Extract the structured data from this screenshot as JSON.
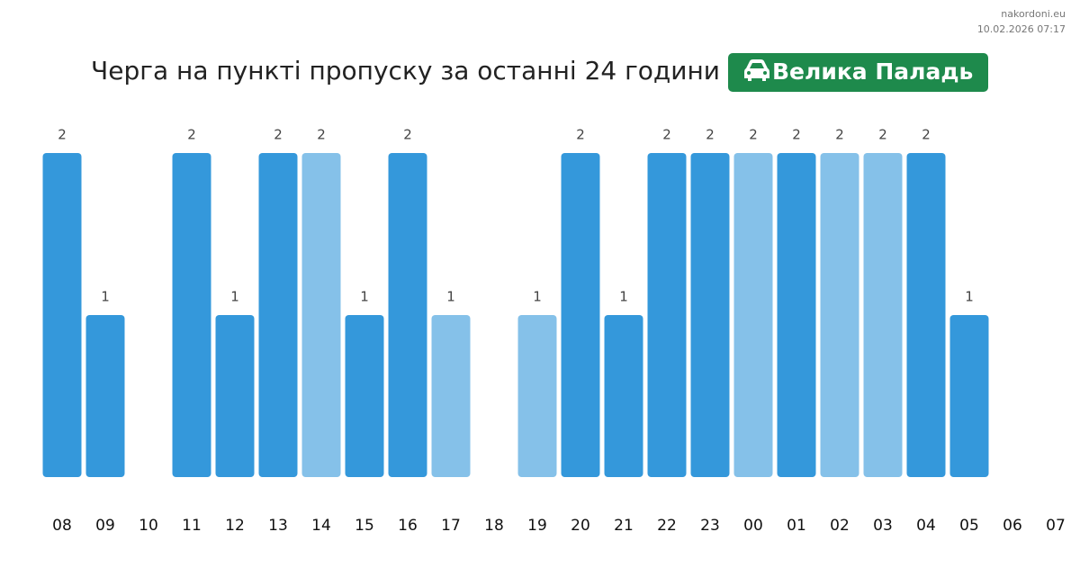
{
  "site": "nakordoni.eu",
  "timestamp": "10.02.2026 07:17",
  "chart_data": {
    "type": "bar",
    "title": "Черга на пункті пропуску за останні 24 години",
    "badge": "Велика Паладь",
    "categories": [
      "08",
      "09",
      "10",
      "11",
      "12",
      "13",
      "14",
      "15",
      "16",
      "17",
      "18",
      "19",
      "20",
      "21",
      "22",
      "23",
      "00",
      "01",
      "02",
      "03",
      "04",
      "05",
      "06",
      "07"
    ],
    "values": [
      2,
      1,
      null,
      2,
      1,
      2,
      2,
      1,
      2,
      1,
      null,
      1,
      2,
      1,
      2,
      2,
      2,
      2,
      2,
      2,
      2,
      1,
      null,
      null
    ],
    "colors": [
      "#3498db",
      "#3498db",
      null,
      "#3498db",
      "#3498db",
      "#3498db",
      "#85c1e9",
      "#3498db",
      "#3498db",
      "#85c1e9",
      null,
      "#85c1e9",
      "#3498db",
      "#3498db",
      "#3498db",
      "#3498db",
      "#85c1e9",
      "#3498db",
      "#85c1e9",
      "#85c1e9",
      "#3498db",
      "#3498db",
      null,
      null
    ],
    "ylim": [
      0,
      2
    ]
  }
}
